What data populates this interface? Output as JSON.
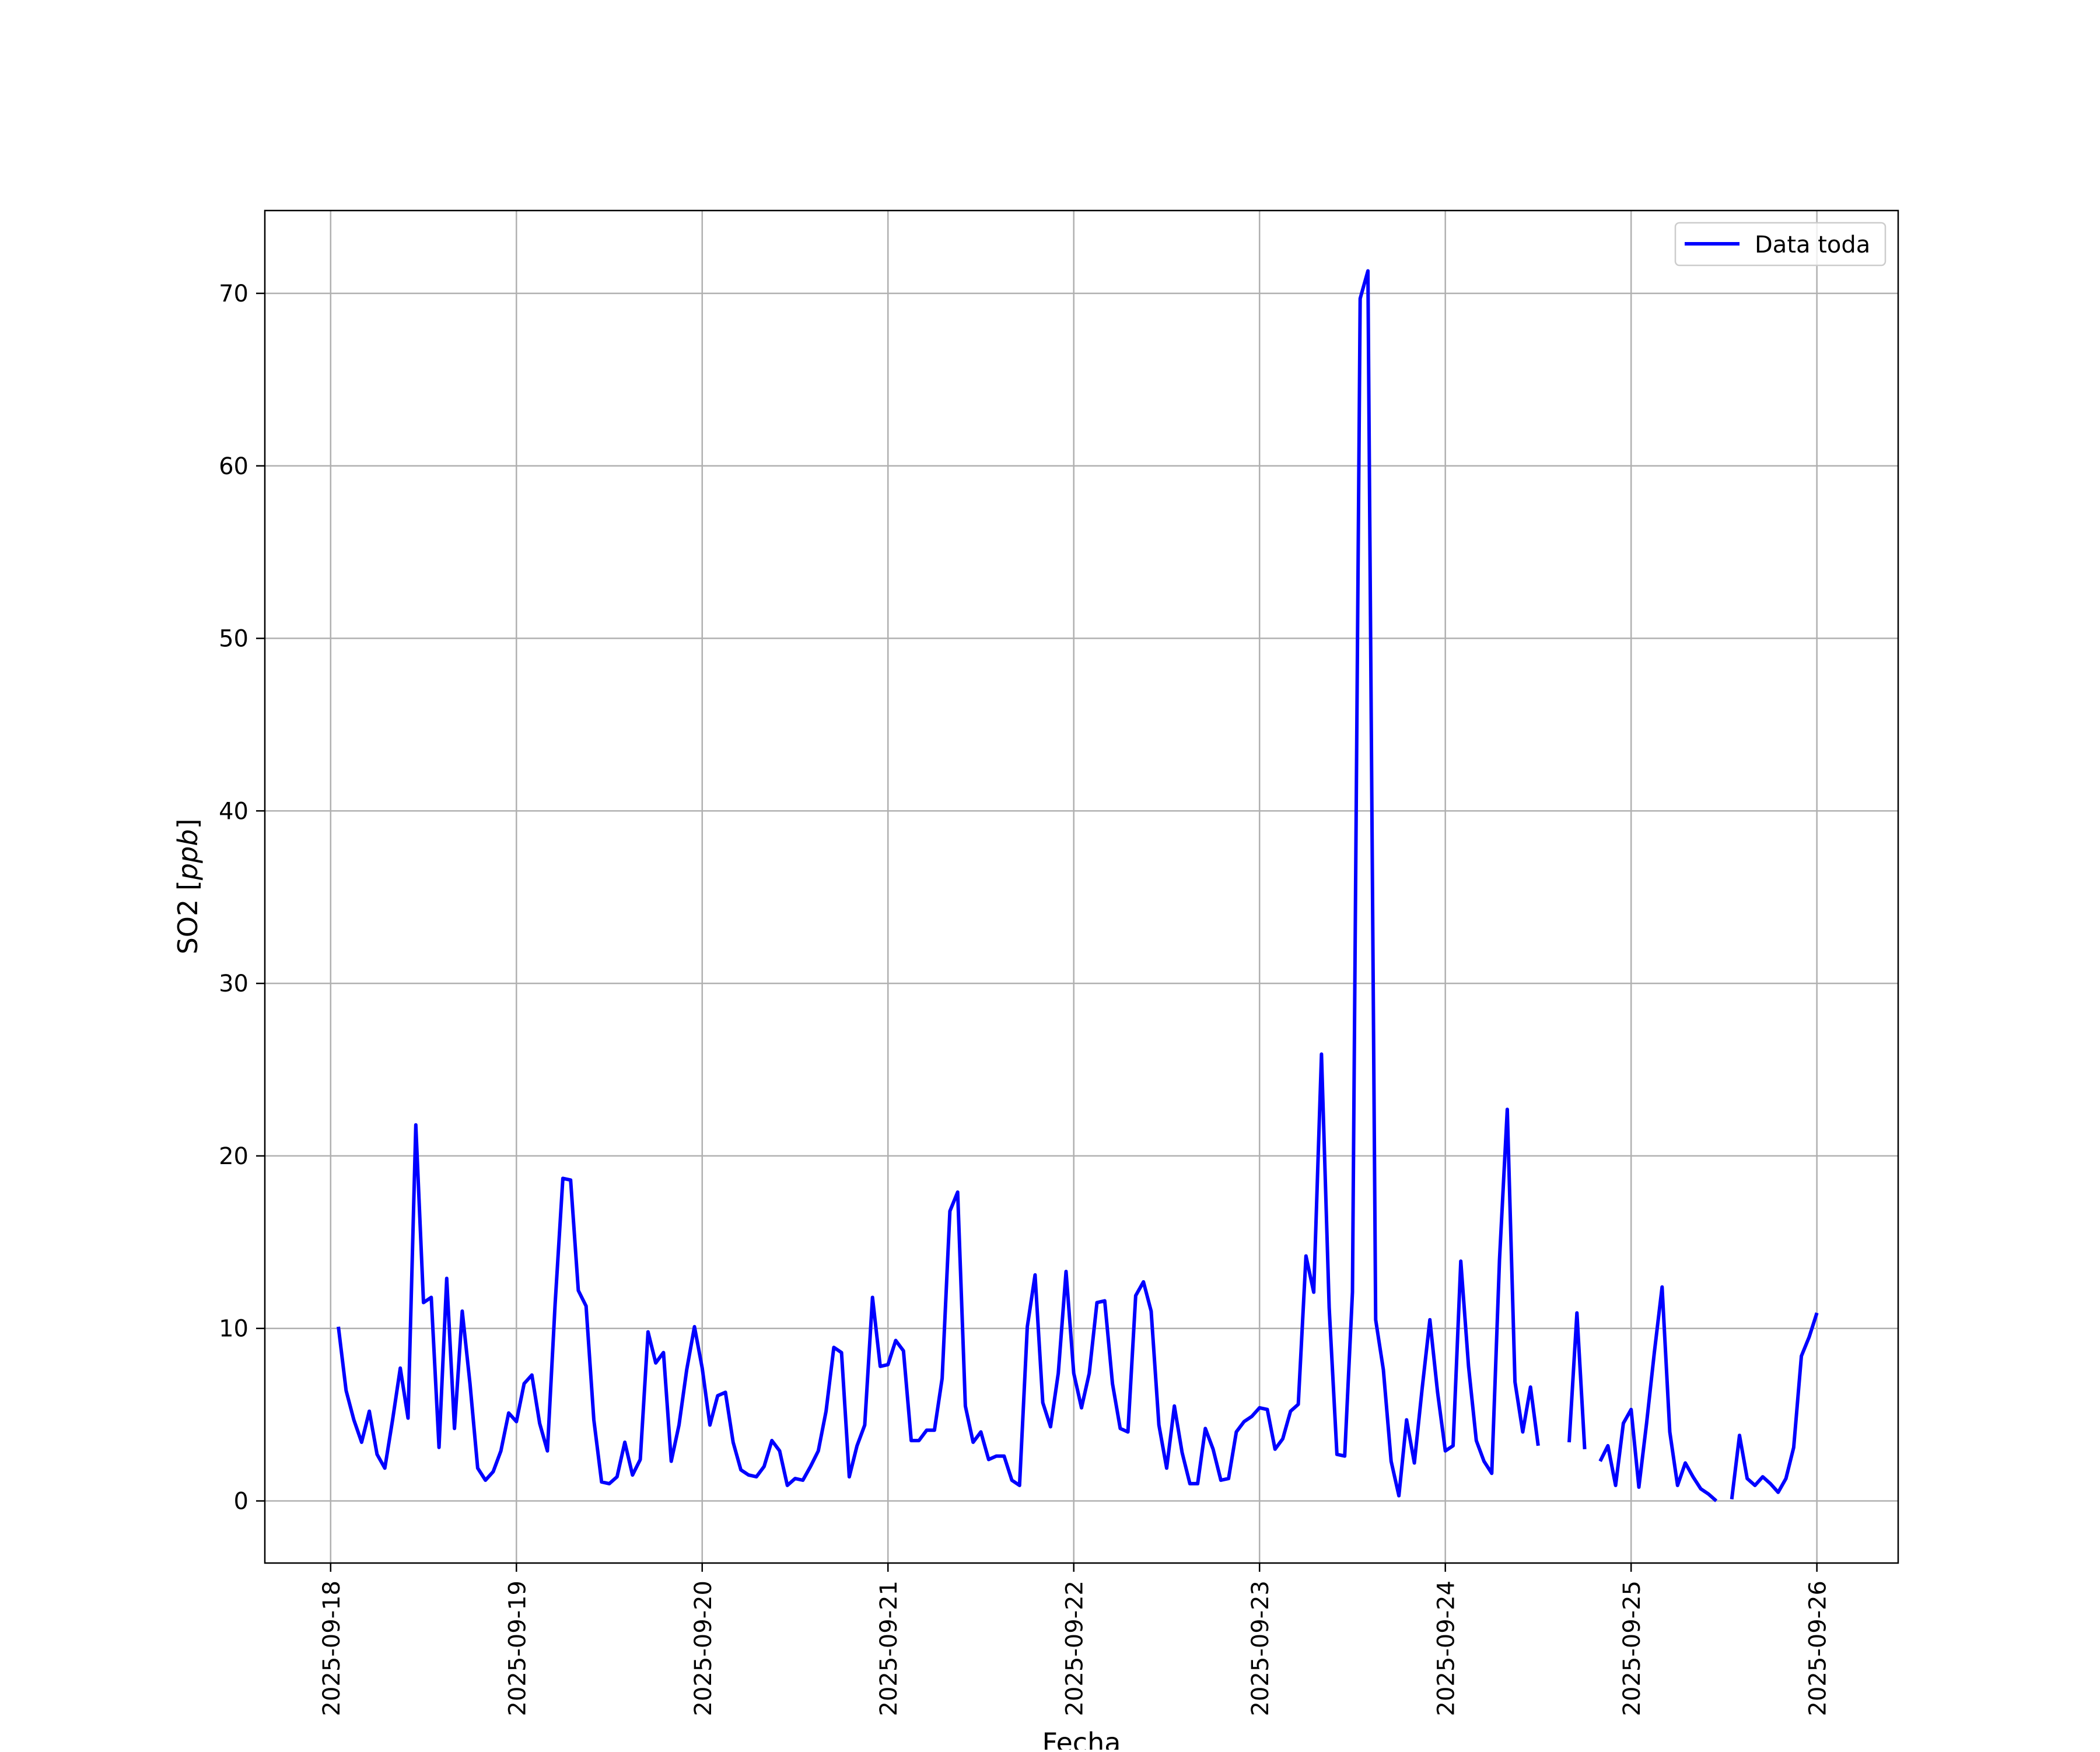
{
  "chart_data": {
    "type": "line",
    "title": "",
    "xlabel": "Fecha",
    "ylabel": "SO2 [",
    "ylabel_unit": "ppb",
    "ylabel_close": "]",
    "x_tick_labels": [
      "2025-09-18",
      "2025-09-19",
      "2025-09-20",
      "2025-09-21",
      "2025-09-22",
      "2025-09-23",
      "2025-09-24",
      "2025-09-25",
      "2025-09-26"
    ],
    "y_ticks": [
      0,
      10,
      20,
      30,
      40,
      50,
      60,
      70
    ],
    "xlim": [
      "2025-09-17 15:30",
      "2025-09-26 10:30"
    ],
    "ylim": [
      -3.6,
      74.8
    ],
    "grid": true,
    "legend_position": "top-right",
    "series": [
      {
        "name": "Data toda",
        "color": "#0000ff",
        "points": [
          [
            "2025-09-18 01:00",
            10.1
          ],
          [
            "2025-09-18 02:00",
            6.4
          ],
          [
            "2025-09-18 03:00",
            4.7
          ],
          [
            "2025-09-18 04:00",
            3.4
          ],
          [
            "2025-09-18 05:00",
            5.2
          ],
          [
            "2025-09-18 06:00",
            2.7
          ],
          [
            "2025-09-18 07:00",
            1.9
          ],
          [
            "2025-09-18 08:00",
            4.7
          ],
          [
            "2025-09-18 09:00",
            7.7
          ],
          [
            "2025-09-18 10:00",
            4.8
          ],
          [
            "2025-09-18 11:00",
            21.8
          ],
          [
            "2025-09-18 12:00",
            11.5
          ],
          [
            "2025-09-18 13:00",
            11.8
          ],
          [
            "2025-09-18 14:00",
            3.1
          ],
          [
            "2025-09-18 15:00",
            12.9
          ],
          [
            "2025-09-18 16:00",
            4.2
          ],
          [
            "2025-09-18 17:00",
            11.0
          ],
          [
            "2025-09-18 18:00",
            6.8
          ],
          [
            "2025-09-18 19:00",
            1.9
          ],
          [
            "2025-09-18 20:00",
            1.2
          ],
          [
            "2025-09-18 21:00",
            1.7
          ],
          [
            "2025-09-18 22:00",
            2.9
          ],
          [
            "2025-09-18 23:00",
            5.1
          ],
          [
            "2025-09-19 00:00",
            4.6
          ],
          [
            "2025-09-19 01:00",
            6.8
          ],
          [
            "2025-09-19 02:00",
            7.3
          ],
          [
            "2025-09-19 03:00",
            4.5
          ],
          [
            "2025-09-19 04:00",
            2.9
          ],
          [
            "2025-09-19 05:00",
            11.4
          ],
          [
            "2025-09-19 06:00",
            18.7
          ],
          [
            "2025-09-19 07:00",
            18.6
          ],
          [
            "2025-09-19 08:00",
            12.2
          ],
          [
            "2025-09-19 09:00",
            11.3
          ],
          [
            "2025-09-19 10:00",
            4.7
          ],
          [
            "2025-09-19 11:00",
            1.1
          ],
          [
            "2025-09-19 12:00",
            1.0
          ],
          [
            "2025-09-19 13:00",
            1.4
          ],
          [
            "2025-09-19 14:00",
            3.4
          ],
          [
            "2025-09-19 15:00",
            1.5
          ],
          [
            "2025-09-19 16:00",
            2.4
          ],
          [
            "2025-09-19 17:00",
            9.8
          ],
          [
            "2025-09-19 18:00",
            8.0
          ],
          [
            "2025-09-19 19:00",
            8.6
          ],
          [
            "2025-09-19 20:00",
            2.3
          ],
          [
            "2025-09-19 21:00",
            4.4
          ],
          [
            "2025-09-19 22:00",
            7.6
          ],
          [
            "2025-09-19 23:00",
            10.1
          ],
          [
            "2025-09-20 00:00",
            7.7
          ],
          [
            "2025-09-20 01:00",
            4.4
          ],
          [
            "2025-09-20 02:00",
            6.1
          ],
          [
            "2025-09-20 03:00",
            6.3
          ],
          [
            "2025-09-20 04:00",
            3.4
          ],
          [
            "2025-09-20 05:00",
            1.8
          ],
          [
            "2025-09-20 06:00",
            1.5
          ],
          [
            "2025-09-20 07:00",
            1.4
          ],
          [
            "2025-09-20 08:00",
            2.0
          ],
          [
            "2025-09-20 09:00",
            3.5
          ],
          [
            "2025-09-20 10:00",
            2.9
          ],
          [
            "2025-09-20 11:00",
            0.9
          ],
          [
            "2025-09-20 12:00",
            1.3
          ],
          [
            "2025-09-20 13:00",
            1.2
          ],
          [
            "2025-09-20 14:00",
            2.0
          ],
          [
            "2025-09-20 15:00",
            2.9
          ],
          [
            "2025-09-20 16:00",
            5.2
          ],
          [
            "2025-09-20 17:00",
            8.9
          ],
          [
            "2025-09-20 18:00",
            8.6
          ],
          [
            "2025-09-20 19:00",
            1.4
          ],
          [
            "2025-09-20 20:00",
            3.2
          ],
          [
            "2025-09-20 21:00",
            4.4
          ],
          [
            "2025-09-20 22:00",
            11.8
          ],
          [
            "2025-09-20 23:00",
            7.8
          ],
          [
            "2025-09-21 00:00",
            7.9
          ],
          [
            "2025-09-21 01:00",
            9.3
          ],
          [
            "2025-09-21 02:00",
            8.7
          ],
          [
            "2025-09-21 03:00",
            3.5
          ],
          [
            "2025-09-21 04:00",
            3.5
          ],
          [
            "2025-09-21 05:00",
            4.1
          ],
          [
            "2025-09-21 06:00",
            4.1
          ],
          [
            "2025-09-21 07:00",
            7.1
          ],
          [
            "2025-09-21 08:00",
            16.8
          ],
          [
            "2025-09-21 09:00",
            17.9
          ],
          [
            "2025-09-21 10:00",
            5.5
          ],
          [
            "2025-09-21 11:00",
            3.4
          ],
          [
            "2025-09-21 12:00",
            4.0
          ],
          [
            "2025-09-21 13:00",
            2.4
          ],
          [
            "2025-09-21 14:00",
            2.6
          ],
          [
            "2025-09-21 15:00",
            2.6
          ],
          [
            "2025-09-21 16:00",
            1.2
          ],
          [
            "2025-09-21 17:00",
            0.9
          ],
          [
            "2025-09-21 18:00",
            10.1
          ],
          [
            "2025-09-21 19:00",
            13.1
          ],
          [
            "2025-09-21 20:00",
            5.7
          ],
          [
            "2025-09-21 21:00",
            4.3
          ],
          [
            "2025-09-21 22:00",
            7.4
          ],
          [
            "2025-09-21 23:00",
            13.3
          ],
          [
            "2025-09-22 00:00",
            7.4
          ],
          [
            "2025-09-22 01:00",
            5.4
          ],
          [
            "2025-09-22 02:00",
            7.4
          ],
          [
            "2025-09-22 03:00",
            11.5
          ],
          [
            "2025-09-22 04:00",
            11.6
          ],
          [
            "2025-09-22 05:00",
            6.8
          ],
          [
            "2025-09-22 06:00",
            4.2
          ],
          [
            "2025-09-22 07:00",
            4.0
          ],
          [
            "2025-09-22 08:00",
            11.9
          ],
          [
            "2025-09-22 09:00",
            12.7
          ],
          [
            "2025-09-22 10:00",
            11.0
          ],
          [
            "2025-09-22 11:00",
            4.4
          ],
          [
            "2025-09-22 12:00",
            1.9
          ],
          [
            "2025-09-22 13:00",
            5.5
          ],
          [
            "2025-09-22 14:00",
            2.8
          ],
          [
            "2025-09-22 15:00",
            1.0
          ],
          [
            "2025-09-22 16:00",
            1.0
          ],
          [
            "2025-09-22 17:00",
            4.2
          ],
          [
            "2025-09-22 18:00",
            3.0
          ],
          [
            "2025-09-22 19:00",
            1.2
          ],
          [
            "2025-09-22 20:00",
            1.3
          ],
          [
            "2025-09-22 21:00",
            4.0
          ],
          [
            "2025-09-22 22:00",
            4.6
          ],
          [
            "2025-09-22 23:00",
            4.9
          ],
          [
            "2025-09-23 00:00",
            5.4
          ],
          [
            "2025-09-23 01:00",
            5.3
          ],
          [
            "2025-09-23 02:00",
            3.0
          ],
          [
            "2025-09-23 03:00",
            3.6
          ],
          [
            "2025-09-23 04:00",
            5.2
          ],
          [
            "2025-09-23 05:00",
            5.6
          ],
          [
            "2025-09-23 06:00",
            14.2
          ],
          [
            "2025-09-23 07:00",
            12.1
          ],
          [
            "2025-09-23 08:00",
            25.9
          ],
          [
            "2025-09-23 09:00",
            11.2
          ],
          [
            "2025-09-23 10:00",
            2.7
          ],
          [
            "2025-09-23 11:00",
            2.6
          ],
          [
            "2025-09-23 12:00",
            12.1
          ],
          [
            "2025-09-23 13:00",
            69.7
          ],
          [
            "2025-09-23 14:00",
            71.3
          ],
          [
            "2025-09-23 15:00",
            10.5
          ],
          [
            "2025-09-23 16:00",
            7.6
          ],
          [
            "2025-09-23 17:00",
            2.3
          ],
          [
            "2025-09-23 18:00",
            0.3
          ],
          [
            "2025-09-23 19:00",
            4.7
          ],
          [
            "2025-09-23 20:00",
            2.2
          ],
          [
            "2025-09-23 21:00",
            6.5
          ],
          [
            "2025-09-23 22:00",
            10.5
          ],
          [
            "2025-09-23 23:00",
            6.3
          ],
          [
            "2025-09-24 00:00",
            2.9
          ],
          [
            "2025-09-24 01:00",
            3.2
          ],
          [
            "2025-09-24 02:00",
            13.9
          ],
          [
            "2025-09-24 03:00",
            7.8
          ],
          [
            "2025-09-24 04:00",
            3.5
          ],
          [
            "2025-09-24 05:00",
            2.3
          ],
          [
            "2025-09-24 06:00",
            1.6
          ],
          [
            "2025-09-24 07:00",
            14.0
          ],
          [
            "2025-09-24 08:00",
            22.7
          ],
          [
            "2025-09-24 09:00",
            6.9
          ],
          [
            "2025-09-24 10:00",
            4.0
          ],
          [
            "2025-09-24 11:00",
            6.6
          ],
          [
            "2025-09-24 12:00",
            3.2
          ],
          null,
          [
            "2025-09-24 16:00",
            3.4
          ],
          [
            "2025-09-24 17:00",
            10.9
          ],
          [
            "2025-09-24 18:00",
            3.0
          ],
          null,
          [
            "2025-09-24 20:00",
            2.3
          ],
          [
            "2025-09-24 21:00",
            3.2
          ],
          [
            "2025-09-24 22:00",
            0.9
          ],
          [
            "2025-09-24 23:00",
            4.5
          ],
          [
            "2025-09-25 00:00",
            5.3
          ],
          [
            "2025-09-25 01:00",
            0.8
          ],
          [
            "2025-09-25 02:00",
            4.5
          ],
          [
            "2025-09-25 03:00",
            8.6
          ],
          [
            "2025-09-25 04:00",
            12.4
          ],
          [
            "2025-09-25 05:00",
            4.0
          ],
          [
            "2025-09-25 06:00",
            0.9
          ],
          [
            "2025-09-25 07:00",
            2.2
          ],
          [
            "2025-09-25 08:00",
            1.4
          ],
          [
            "2025-09-25 09:00",
            0.7
          ],
          [
            "2025-09-25 10:00",
            0.4
          ],
          [
            "2025-09-25 11:00",
            0.0
          ],
          null,
          [
            "2025-09-25 13:00",
            0.1
          ],
          [
            "2025-09-25 14:00",
            3.8
          ],
          [
            "2025-09-25 15:00",
            1.3
          ],
          [
            "2025-09-25 16:00",
            0.9
          ],
          [
            "2025-09-25 17:00",
            1.4
          ],
          [
            "2025-09-25 18:00",
            1.0
          ],
          [
            "2025-09-25 19:00",
            0.5
          ],
          [
            "2025-09-25 20:00",
            1.3
          ],
          [
            "2025-09-25 21:00",
            3.1
          ],
          [
            "2025-09-25 22:00",
            8.4
          ],
          [
            "2025-09-25 23:00",
            9.5
          ],
          [
            "2025-09-26 00:00",
            10.9
          ]
        ]
      }
    ]
  }
}
